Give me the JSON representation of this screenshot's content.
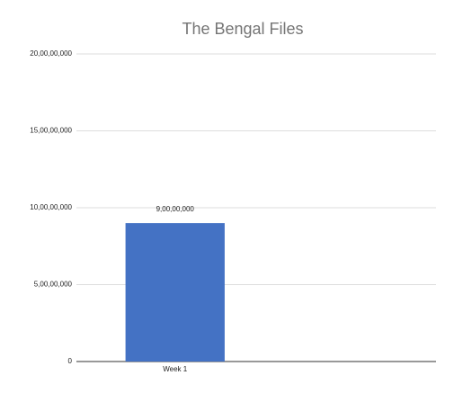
{
  "chart_data": {
    "type": "bar",
    "title": "The Bengal Files",
    "categories": [
      "Week 1",
      null
    ],
    "values": [
      90000000,
      null
    ],
    "value_labels": [
      "9,00,00,000",
      null
    ],
    "color": "#4472c4",
    "ylim": [
      0,
      200000000
    ],
    "yticks": [
      {
        "value": 0,
        "label": "0"
      },
      {
        "value": 50000000,
        "label": "5,00,00,000"
      },
      {
        "value": 100000000,
        "label": "10,00,00,000"
      },
      {
        "value": 150000000,
        "label": "15,00,00,000"
      },
      {
        "value": 200000000,
        "label": "20,00,00,000"
      }
    ],
    "grid": true
  }
}
